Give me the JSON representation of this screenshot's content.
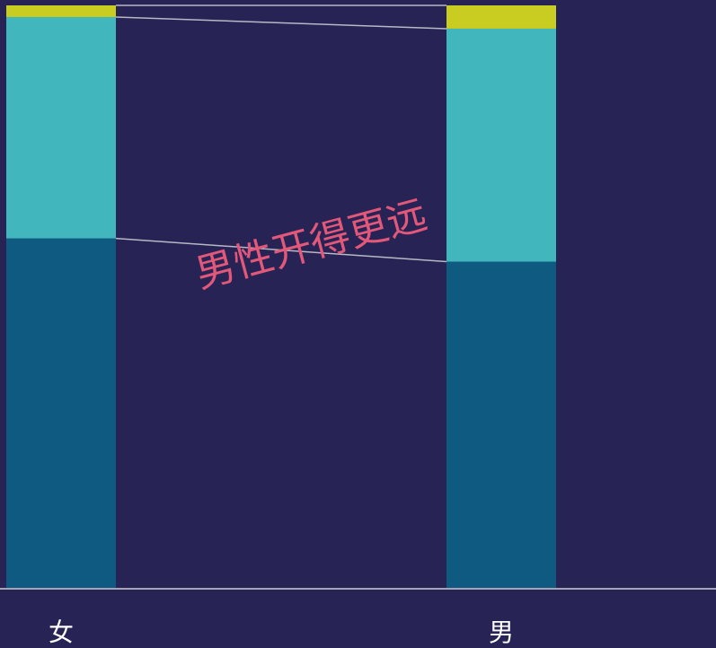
{
  "chart_data": {
    "type": "bar",
    "stacked": true,
    "normalized": true,
    "categories": [
      "女",
      "男"
    ],
    "series": [
      {
        "values": [
          0.6,
          0.56
        ],
        "color": "#0e5a80"
      },
      {
        "values": [
          0.38,
          0.4
        ],
        "color": "#41b6bd"
      },
      {
        "values": [
          0.02,
          0.04
        ],
        "color": "#c9cc21"
      }
    ],
    "ylim": [
      0,
      1
    ],
    "annotation": {
      "text": "男性开得更远",
      "color": "#e2587a"
    },
    "grid": false,
    "legend": "none"
  },
  "colors": {
    "background": "#272354",
    "axis": "#d0d0d8",
    "connector": "#b8b8c4",
    "label": "#ffffff"
  }
}
